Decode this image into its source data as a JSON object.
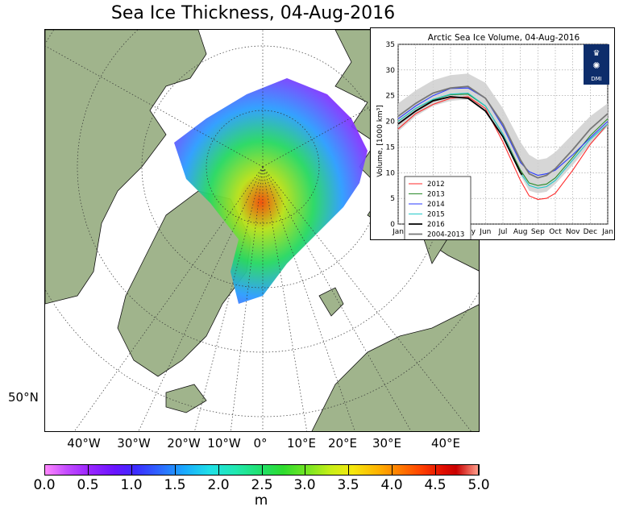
{
  "title": "Sea Ice Thickness, 04-Aug-2016",
  "map": {
    "longitude_labels": [
      "40°W",
      "30°W",
      "20°W",
      "10°W",
      "0°",
      "10°E",
      "20°E",
      "30°E",
      "40°E"
    ],
    "latitude_label": "50°N",
    "colors": {
      "ocean": "#ffffff",
      "land": "#a0b48c",
      "graticule": "#555555"
    }
  },
  "colorbar": {
    "ticks": [
      "0.0",
      "0.5",
      "1.0",
      "1.5",
      "2.0",
      "2.5",
      "3.0",
      "3.5",
      "4.0",
      "4.5",
      "5.0"
    ],
    "unit": "m",
    "range": [
      0,
      5
    ]
  },
  "chart_data": {
    "type": "line",
    "title": "Arctic Sea Ice Volume, 04-Aug-2016",
    "ylabel": "Volume, [1000 km³]",
    "xlabel": "",
    "ylim": [
      0,
      35
    ],
    "yticks": [
      0,
      5,
      10,
      15,
      20,
      25,
      30,
      35
    ],
    "xlim": [
      0,
      12
    ],
    "categories": [
      "Jan",
      "Feb",
      "Mar",
      "Apr",
      "May",
      "Jun",
      "Jul",
      "Aug",
      "Sep",
      "Oct",
      "Nov",
      "Dec",
      "Jan"
    ],
    "grid": true,
    "legend_position": "bottom-left",
    "logo_text": "DMI",
    "series": [
      {
        "name": "2012",
        "color": "#ff2a2a",
        "x": [
          0,
          1,
          2,
          3,
          4,
          5,
          6,
          7,
          7.5,
          8,
          8.5,
          9,
          10,
          11,
          12
        ],
        "values": [
          18.5,
          21.5,
          23.3,
          24.5,
          24.8,
          22.5,
          16,
          8.5,
          5.5,
          4.8,
          5.0,
          6.0,
          10.5,
          15.5,
          19.5
        ]
      },
      {
        "name": "2013",
        "color": "#2a8a2a",
        "x": [
          0,
          1,
          2,
          3,
          4,
          5,
          6,
          7,
          7.5,
          8,
          8.5,
          9,
          10,
          11,
          12
        ],
        "values": [
          20,
          22.5,
          24.2,
          25.2,
          25.3,
          23,
          17.5,
          10.5,
          8,
          7.5,
          7.8,
          9,
          13,
          17.2,
          20.5
        ]
      },
      {
        "name": "2014",
        "color": "#2a3aff",
        "x": [
          0,
          1,
          2,
          3,
          4,
          5,
          6,
          7,
          7.5,
          8,
          8.5,
          9,
          10,
          11,
          12
        ],
        "values": [
          20.5,
          23,
          25,
          26.4,
          26.5,
          24.5,
          19,
          12,
          10.2,
          9.5,
          9.8,
          10.5,
          13.5,
          16.8,
          20
        ]
      },
      {
        "name": "2015",
        "color": "#22c8c8",
        "x": [
          0,
          1,
          2,
          3,
          4,
          5,
          6,
          7,
          7.5,
          8,
          8.5,
          9,
          10,
          11,
          12
        ],
        "values": [
          20,
          22.5,
          24.3,
          25.3,
          25.5,
          23,
          17.5,
          10,
          7.5,
          7.0,
          7.3,
          8.5,
          12.5,
          16.5,
          19.5
        ]
      },
      {
        "name": "2016",
        "color": "#000000",
        "x": [
          0,
          1,
          2,
          3,
          4,
          5,
          6,
          7,
          7.1
        ],
        "values": [
          19.5,
          22,
          24,
          24.8,
          24.5,
          22,
          17,
          10,
          9.6
        ]
      },
      {
        "name": "2004-2013",
        "color": "#777777",
        "x": [
          0,
          1,
          2,
          3,
          4,
          5,
          6,
          7,
          7.5,
          8,
          8.5,
          9,
          10,
          11,
          12
        ],
        "values": [
          21,
          23.5,
          25.5,
          26.5,
          26.8,
          24.5,
          19.5,
          12.5,
          9.8,
          9.0,
          9.5,
          10.8,
          14.5,
          18.5,
          21.5
        ]
      }
    ],
    "band_2004_2013": {
      "x": [
        0,
        1,
        2,
        3,
        4,
        5,
        6,
        7,
        7.5,
        8,
        8.5,
        9,
        10,
        11,
        12
      ],
      "upper": [
        23.5,
        26,
        28,
        29,
        29.3,
        27.5,
        22.5,
        16,
        13.5,
        12.5,
        12.8,
        14,
        17.5,
        21,
        23.5
      ],
      "lower": [
        18,
        21,
        23,
        24,
        24.3,
        22,
        17,
        9.5,
        6.5,
        6.0,
        6.3,
        7.8,
        11.5,
        15.5,
        19
      ]
    }
  }
}
